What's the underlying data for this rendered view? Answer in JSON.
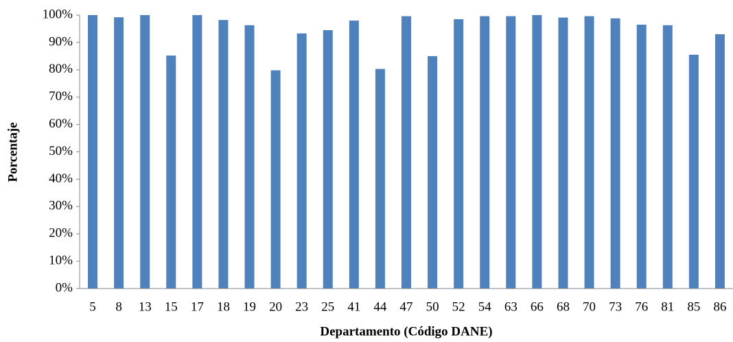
{
  "chart_data": {
    "type": "bar",
    "x_label": "Departamento (Código DANE)",
    "y_label": "Porcentaje",
    "categories": [
      "5",
      "8",
      "13",
      "15",
      "17",
      "18",
      "19",
      "20",
      "23",
      "25",
      "41",
      "44",
      "47",
      "50",
      "52",
      "54",
      "63",
      "66",
      "68",
      "70",
      "73",
      "76",
      "81",
      "85",
      "86"
    ],
    "values": [
      100,
      99.2,
      100,
      85.2,
      100,
      98.2,
      96.3,
      79.8,
      93.3,
      94.5,
      98,
      80.3,
      99.6,
      85,
      98.5,
      99.6,
      99.6,
      100,
      99.1,
      99.6,
      98.8,
      96.5,
      96.3,
      85.5,
      93
    ],
    "color": "#4f81bd",
    "ylim": [
      0,
      100
    ],
    "yticks": [
      {
        "value": 0,
        "label": "0%"
      },
      {
        "value": 10,
        "label": "10%"
      },
      {
        "value": 20,
        "label": "20%"
      },
      {
        "value": 30,
        "label": "30%"
      },
      {
        "value": 40,
        "label": "40%"
      },
      {
        "value": 50,
        "label": "50%"
      },
      {
        "value": 60,
        "label": "60%"
      },
      {
        "value": 70,
        "label": "70%"
      },
      {
        "value": 80,
        "label": "80%"
      },
      {
        "value": 90,
        "label": "90%"
      },
      {
        "value": 100,
        "label": "100%"
      }
    ],
    "grid": false
  }
}
